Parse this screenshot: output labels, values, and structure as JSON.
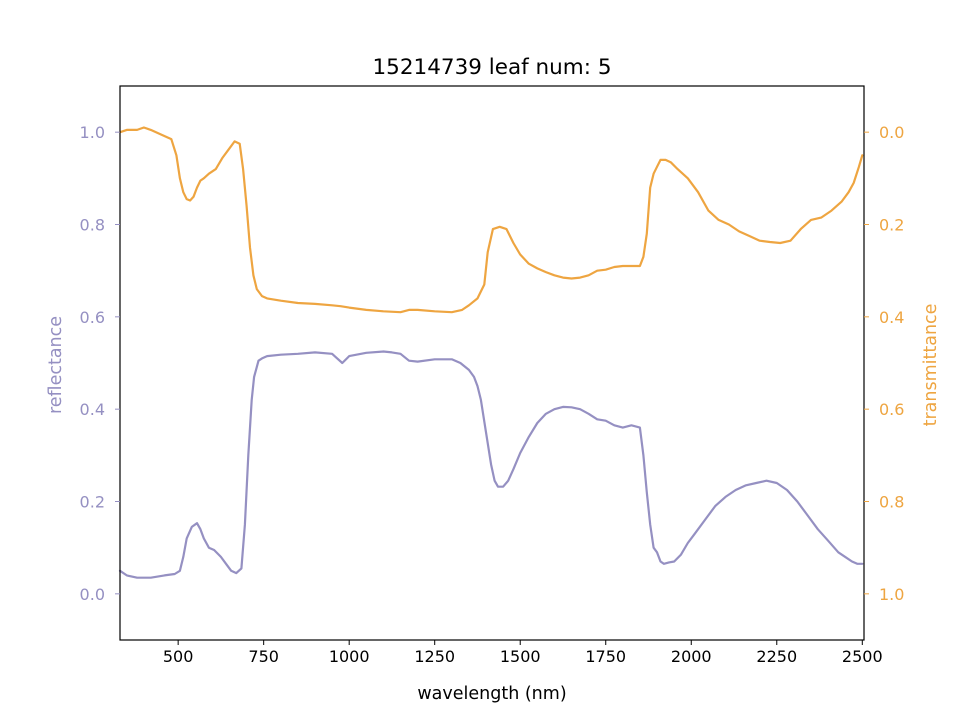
{
  "chart_data": {
    "type": "line",
    "title": "15214739 leaf num: 5",
    "xlabel": "wavelength (nm)",
    "ylabel_left": "reflectance",
    "ylabel_right": "transmittance",
    "xlim": [
      330,
      2505
    ],
    "ylim_left": [
      -0.1,
      1.1
    ],
    "ylim_right_inverted": [
      1.1,
      -0.1
    ],
    "grid": false,
    "legend": "none",
    "x_ticks": [
      500,
      750,
      1000,
      1250,
      1500,
      1750,
      2000,
      2250,
      2500
    ],
    "x_tick_labels": [
      "500",
      "750",
      "1000",
      "1250",
      "1500",
      "1750",
      "2000",
      "2250",
      "2500"
    ],
    "y_left_ticks": [
      0.0,
      0.2,
      0.4,
      0.6,
      0.8,
      1.0
    ],
    "y_left_tick_labels": [
      "0.0",
      "0.2",
      "0.4",
      "0.6",
      "0.8",
      "1.0"
    ],
    "y_right_ticks": [
      0.0,
      0.2,
      0.4,
      0.6,
      0.8,
      1.0
    ],
    "y_right_tick_labels": [
      "0.0",
      "0.2",
      "0.4",
      "0.6",
      "0.8",
      "1.0"
    ],
    "series": [
      {
        "axis": "left",
        "color": "#9590c2",
        "x": [
          330,
          350,
          380,
          420,
          460,
          490,
          505,
          515,
          525,
          540,
          555,
          565,
          575,
          590,
          605,
          625,
          640,
          655,
          670,
          685,
          695,
          705,
          715,
          722,
          735,
          745,
          760,
          800,
          850,
          900,
          950,
          965,
          980,
          1000,
          1050,
          1100,
          1125,
          1150,
          1175,
          1200,
          1250,
          1300,
          1325,
          1350,
          1365,
          1375,
          1385,
          1400,
          1415,
          1425,
          1435,
          1450,
          1465,
          1480,
          1500,
          1525,
          1550,
          1575,
          1600,
          1625,
          1650,
          1675,
          1700,
          1725,
          1750,
          1775,
          1800,
          1825,
          1850,
          1860,
          1870,
          1880,
          1890,
          1900,
          1910,
          1920,
          1935,
          1950,
          1970,
          1990,
          2010,
          2040,
          2070,
          2100,
          2130,
          2160,
          2190,
          2220,
          2250,
          2280,
          2310,
          2340,
          2370,
          2400,
          2430,
          2450,
          2470,
          2485,
          2500
        ],
        "y": [
          0.05,
          0.04,
          0.035,
          0.035,
          0.04,
          0.043,
          0.05,
          0.08,
          0.12,
          0.145,
          0.153,
          0.14,
          0.12,
          0.1,
          0.095,
          0.08,
          0.065,
          0.05,
          0.045,
          0.055,
          0.15,
          0.3,
          0.42,
          0.47,
          0.505,
          0.51,
          0.515,
          0.518,
          0.52,
          0.523,
          0.52,
          0.51,
          0.5,
          0.515,
          0.522,
          0.525,
          0.523,
          0.52,
          0.505,
          0.503,
          0.508,
          0.508,
          0.5,
          0.485,
          0.47,
          0.45,
          0.42,
          0.35,
          0.28,
          0.245,
          0.232,
          0.232,
          0.245,
          0.27,
          0.305,
          0.34,
          0.37,
          0.39,
          0.4,
          0.405,
          0.404,
          0.4,
          0.39,
          0.378,
          0.375,
          0.365,
          0.36,
          0.365,
          0.36,
          0.3,
          0.22,
          0.15,
          0.1,
          0.09,
          0.07,
          0.065,
          0.068,
          0.07,
          0.085,
          0.11,
          0.13,
          0.16,
          0.19,
          0.21,
          0.225,
          0.235,
          0.24,
          0.245,
          0.24,
          0.225,
          0.2,
          0.17,
          0.14,
          0.115,
          0.09,
          0.08,
          0.07,
          0.065,
          0.065
        ]
      },
      {
        "axis": "right",
        "color": "#eea541",
        "x": [
          330,
          350,
          380,
          400,
          420,
          450,
          480,
          495,
          505,
          515,
          525,
          535,
          545,
          555,
          565,
          575,
          590,
          610,
          630,
          650,
          665,
          680,
          690,
          700,
          710,
          720,
          730,
          745,
          760,
          800,
          850,
          900,
          950,
          975,
          1000,
          1050,
          1100,
          1150,
          1175,
          1200,
          1250,
          1300,
          1330,
          1350,
          1375,
          1395,
          1405,
          1420,
          1440,
          1460,
          1480,
          1500,
          1525,
          1550,
          1575,
          1600,
          1625,
          1650,
          1675,
          1700,
          1725,
          1750,
          1775,
          1800,
          1825,
          1850,
          1860,
          1870,
          1880,
          1890,
          1900,
          1910,
          1925,
          1940,
          1960,
          1990,
          2020,
          2050,
          2080,
          2110,
          2140,
          2170,
          2200,
          2230,
          2260,
          2290,
          2320,
          2350,
          2380,
          2410,
          2440,
          2460,
          2475,
          2490,
          2500
        ],
        "y": [
          0.0,
          -0.005,
          -0.005,
          -0.01,
          -0.005,
          0.005,
          0.015,
          0.05,
          0.1,
          0.13,
          0.145,
          0.148,
          0.14,
          0.12,
          0.105,
          0.1,
          0.09,
          0.08,
          0.055,
          0.035,
          0.02,
          0.025,
          0.08,
          0.16,
          0.25,
          0.31,
          0.34,
          0.355,
          0.36,
          0.365,
          0.37,
          0.372,
          0.375,
          0.377,
          0.38,
          0.385,
          0.388,
          0.39,
          0.385,
          0.385,
          0.388,
          0.39,
          0.385,
          0.375,
          0.36,
          0.33,
          0.26,
          0.21,
          0.205,
          0.21,
          0.24,
          0.265,
          0.285,
          0.295,
          0.303,
          0.31,
          0.315,
          0.317,
          0.315,
          0.31,
          0.3,
          0.298,
          0.292,
          0.29,
          0.29,
          0.29,
          0.27,
          0.22,
          0.12,
          0.09,
          0.075,
          0.06,
          0.06,
          0.065,
          0.08,
          0.1,
          0.13,
          0.17,
          0.19,
          0.2,
          0.215,
          0.225,
          0.235,
          0.238,
          0.24,
          0.235,
          0.21,
          0.19,
          0.185,
          0.17,
          0.15,
          0.13,
          0.11,
          0.075,
          0.05
        ]
      }
    ]
  }
}
